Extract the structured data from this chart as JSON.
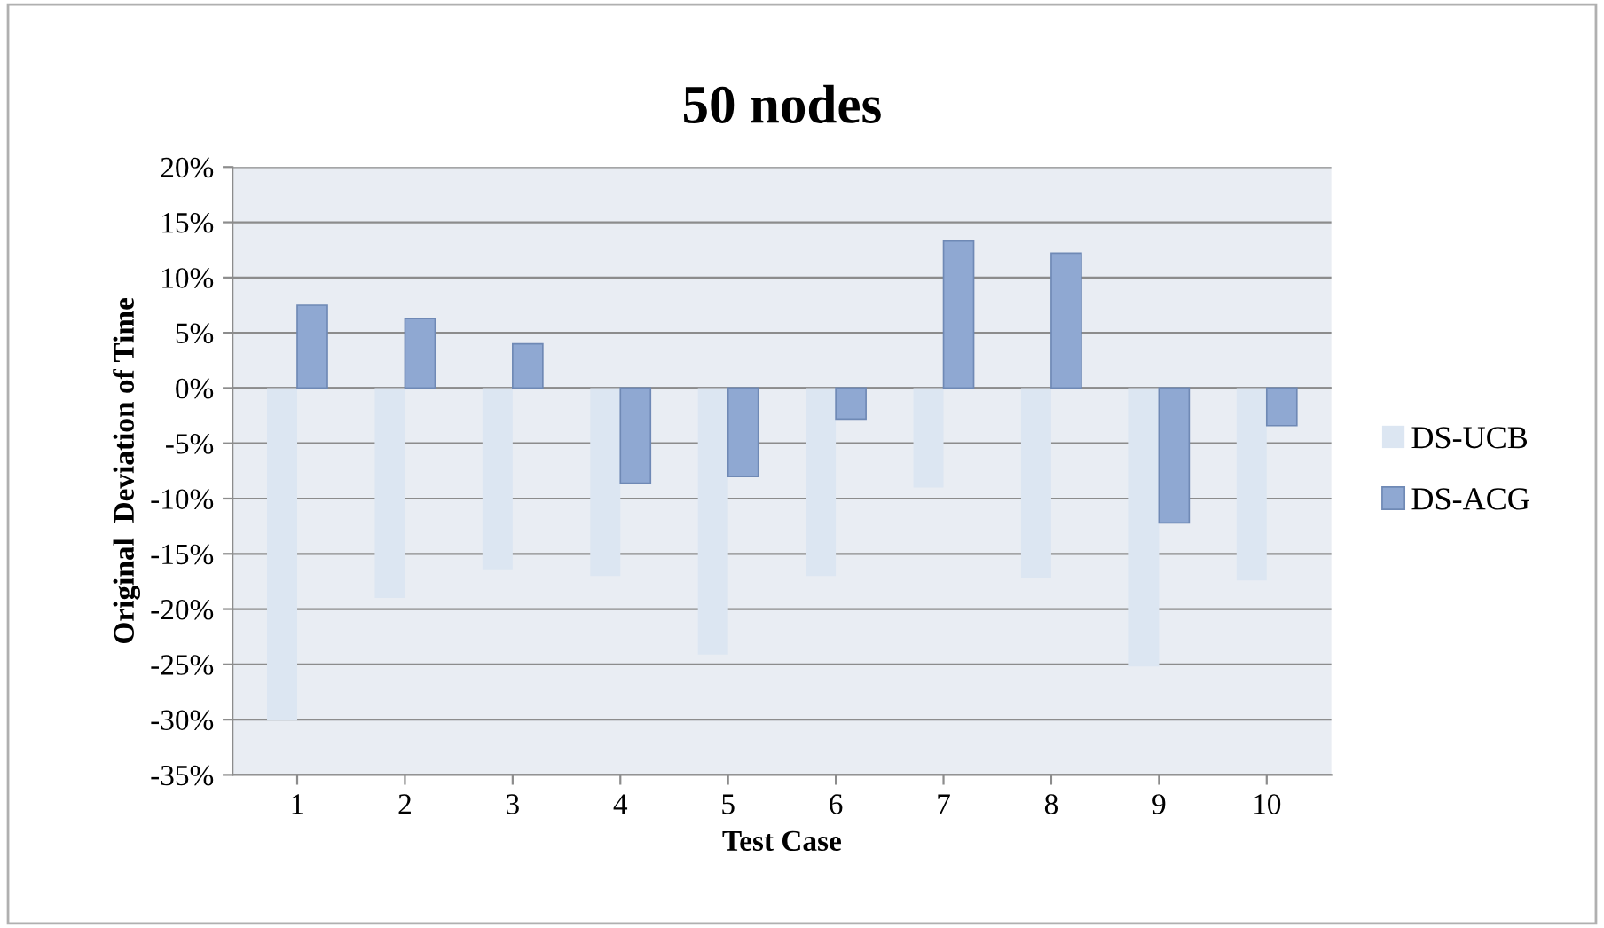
{
  "chart_data": {
    "type": "bar",
    "title": "50 nodes",
    "xlabel": "Test Case",
    "ylabel": "Original  Deviation of Time",
    "categories": [
      "1",
      "2",
      "3",
      "4",
      "5",
      "6",
      "7",
      "8",
      "9",
      "10"
    ],
    "series": [
      {
        "name": "DS-UCB",
        "color": "#dce6f2",
        "values": [
          -30.1,
          -19.0,
          -16.4,
          -17.0,
          -24.1,
          -17.0,
          -9.0,
          -17.2,
          -25.2,
          -17.4
        ]
      },
      {
        "name": "DS-ACG",
        "color": "#8fa8d2",
        "values": [
          7.5,
          6.3,
          4.0,
          -8.6,
          -8.0,
          -2.8,
          13.3,
          12.2,
          -12.2,
          -3.4
        ]
      }
    ],
    "ylim": [
      -35,
      20
    ],
    "yticks": [
      {
        "value": -35,
        "label": "-35%"
      },
      {
        "value": -30,
        "label": "-30%"
      },
      {
        "value": -25,
        "label": "-25%"
      },
      {
        "value": -20,
        "label": "-20%"
      },
      {
        "value": -15,
        "label": "-15%"
      },
      {
        "value": -10,
        "label": "-10%"
      },
      {
        "value": -5,
        "label": "-5%"
      },
      {
        "value": 0,
        "label": "0%"
      },
      {
        "value": 5,
        "label": "5%"
      },
      {
        "value": 10,
        "label": "10%"
      },
      {
        "value": 15,
        "label": "15%"
      },
      {
        "value": 20,
        "label": "20%"
      }
    ],
    "grid": "y",
    "legend": "right"
  }
}
